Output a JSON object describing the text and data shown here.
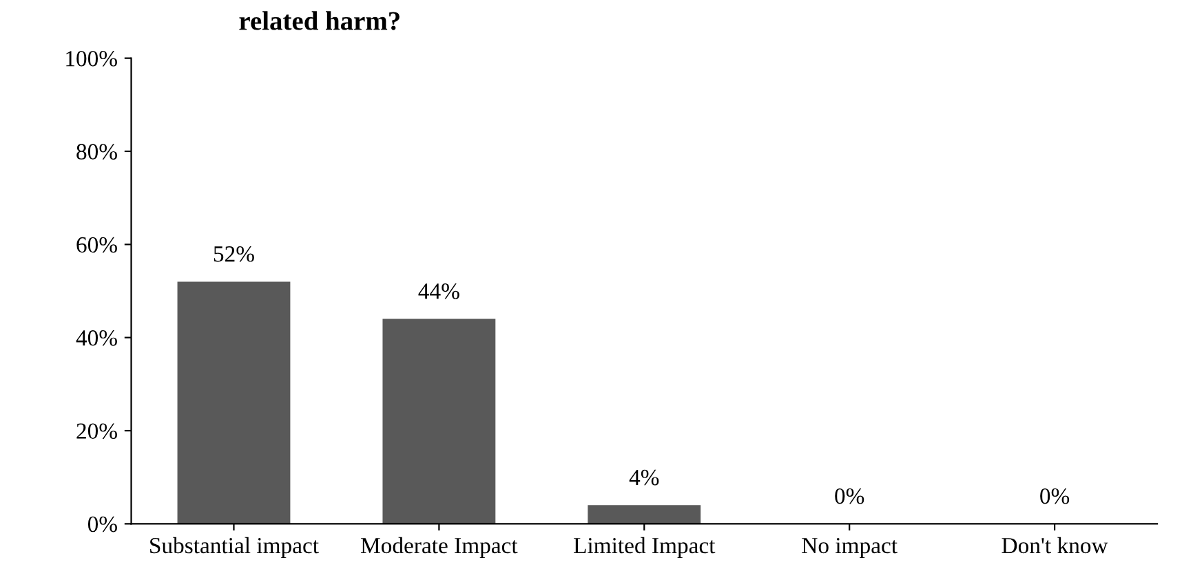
{
  "chart_data": {
    "type": "bar",
    "title": "related harm?",
    "categories": [
      "Substantial impact",
      "Moderate Impact",
      "Limited Impact",
      "No impact",
      "Don't know"
    ],
    "values": [
      52,
      44,
      4,
      0,
      0
    ],
    "color": "#595959",
    "data_labels": true,
    "value_labels": [
      "52%",
      "44%",
      "4%",
      "0%",
      "0%"
    ],
    "ylim": [
      0,
      100
    ],
    "yticks": [
      {
        "value": 0,
        "label": "0%"
      },
      {
        "value": 20,
        "label": "20%"
      },
      {
        "value": 40,
        "label": "40%"
      },
      {
        "value": 60,
        "label": "60%"
      },
      {
        "value": 80,
        "label": "80%"
      },
      {
        "value": 100,
        "label": "100%"
      }
    ],
    "grid": false,
    "legend": false
  }
}
